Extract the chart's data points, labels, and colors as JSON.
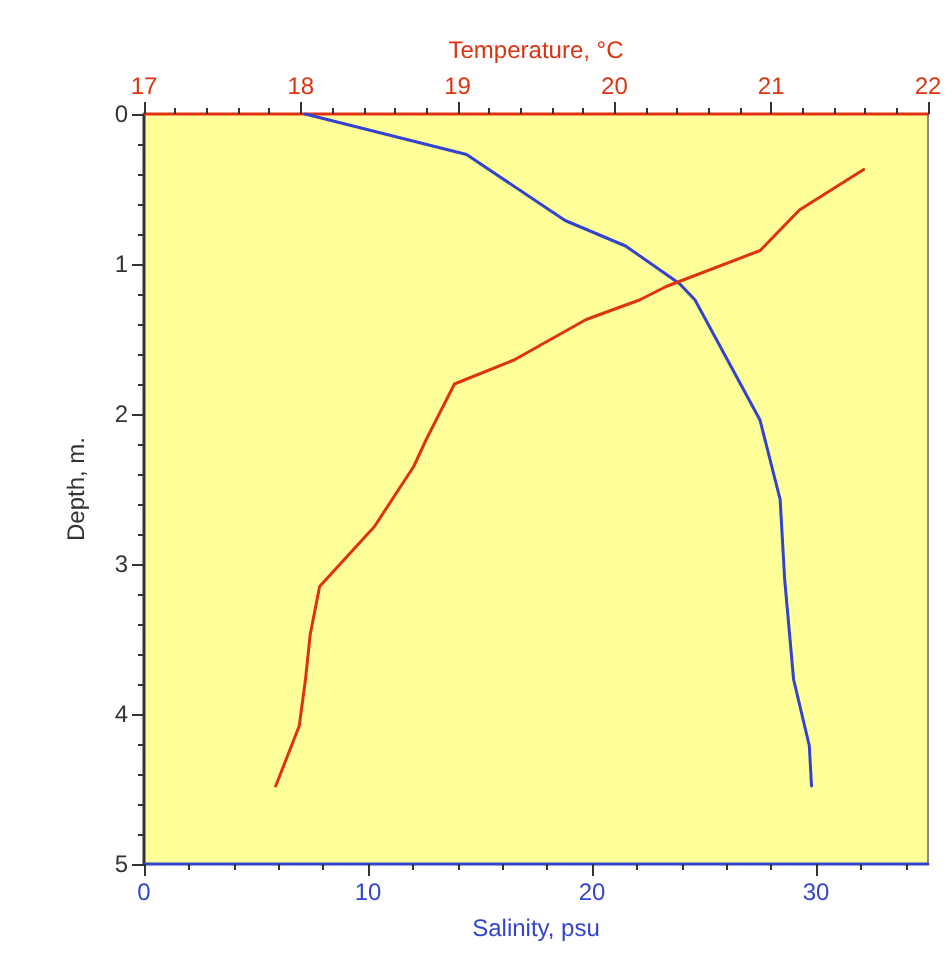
{
  "chart_data": {
    "type": "line",
    "xlabel": "Salinity, psu",
    "x2label": "Temperature, °C",
    "ylabel": "Depth, m.",
    "xlim": [
      0,
      35
    ],
    "xticks": [
      0,
      10,
      20,
      30
    ],
    "x2lim": [
      17,
      22
    ],
    "x2ticks": [
      17,
      18,
      19,
      20,
      21,
      22
    ],
    "ylim": [
      5,
      0
    ],
    "yticks": [
      0,
      1,
      2,
      3,
      4,
      5
    ],
    "grid": false,
    "marker": "none",
    "line_style": "solid",
    "series": [
      {
        "color": "#3344cc",
        "x": [
          7.2,
          14.4,
          18.8,
          21.5,
          23.9,
          24.6,
          27.5,
          28.4,
          28.6,
          29.0,
          29.7,
          29.8
        ],
        "values": [
          0,
          0.27,
          0.71,
          0.88,
          1.13,
          1.24,
          2.04,
          2.57,
          3.1,
          3.77,
          4.21,
          4.48
        ]
      },
      {
        "color": "#dd3311",
        "axis": "x2",
        "x": [
          21.59,
          21.18,
          20.93,
          20.33,
          20.16,
          19.82,
          19.36,
          18.98,
          18.8,
          18.72,
          18.47,
          18.12,
          18.06,
          18.03,
          17.99,
          17.84
        ],
        "values": [
          0.37,
          0.64,
          0.91,
          1.15,
          1.24,
          1.37,
          1.64,
          1.8,
          2.17,
          2.35,
          2.75,
          3.15,
          3.47,
          3.77,
          4.08,
          4.48
        ]
      }
    ]
  }
}
